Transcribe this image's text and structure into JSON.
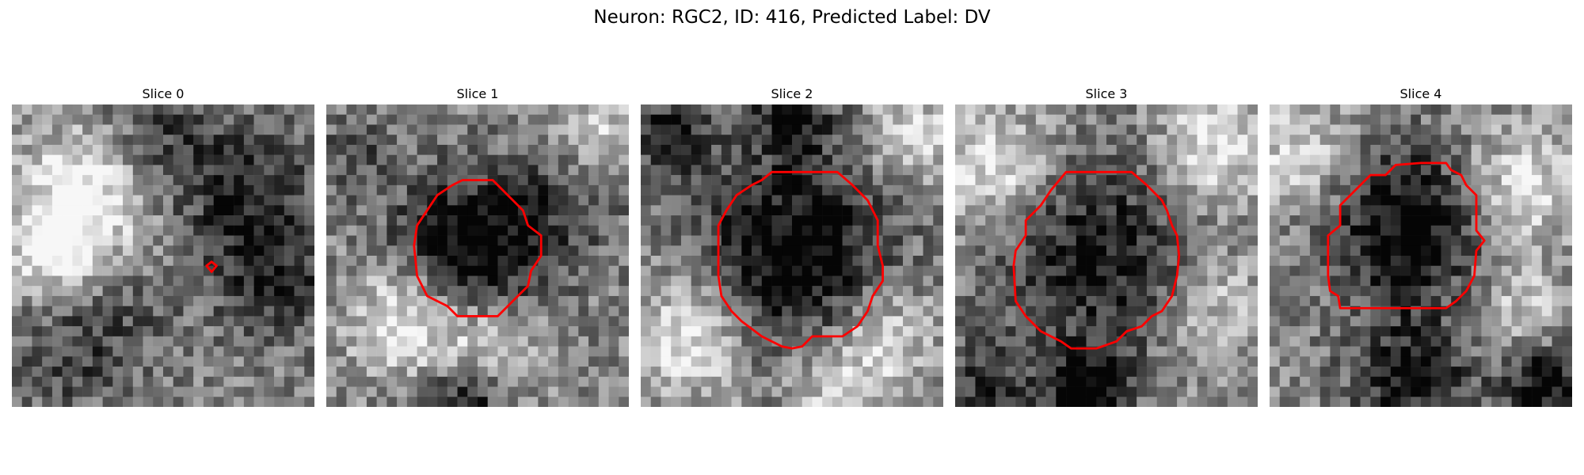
{
  "figure": {
    "title": "Neuron: RGC2, ID: 416, Predicted Label: DV"
  },
  "panels": [
    {
      "title": "Slice 0",
      "contour_color": "#ff0000"
    },
    {
      "title": "Slice 1",
      "contour_color": "#ff0000"
    },
    {
      "title": "Slice 2",
      "contour_color": "#ff0000"
    },
    {
      "title": "Slice 3",
      "contour_color": "#ff0000"
    },
    {
      "title": "Slice 4",
      "contour_color": "#ff0000"
    }
  ]
}
